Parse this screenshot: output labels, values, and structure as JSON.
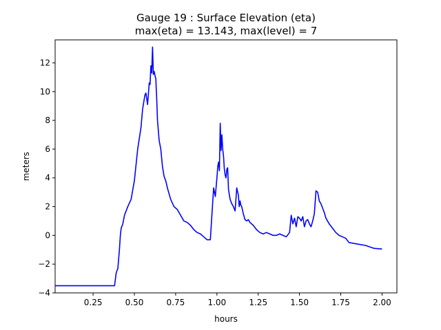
{
  "chart_data": {
    "type": "line",
    "title_line1": "Gauge 19 : Surface Elevation (eta)",
    "title_line2": "max(eta) =  13.143,    max(level) = 7",
    "xlabel": "hours",
    "ylabel": "meters",
    "xlim": [
      0.02,
      2.09
    ],
    "ylim": [
      -4.0,
      13.6
    ],
    "xticks": [
      0.25,
      0.5,
      0.75,
      1.0,
      1.25,
      1.5,
      1.75,
      2.0
    ],
    "xtick_labels": [
      "0.25",
      "0.50",
      "0.75",
      "1.00",
      "1.25",
      "1.50",
      "1.75",
      "2.00"
    ],
    "yticks": [
      -4,
      -2,
      0,
      2,
      4,
      6,
      8,
      10,
      12
    ],
    "ytick_labels": [
      "−4",
      "−2",
      "0",
      "2",
      "4",
      "6",
      "8",
      "10",
      "12"
    ],
    "grid": false,
    "line_color": "#0000ff",
    "series": [
      {
        "name": "eta",
        "x": [
          0.02,
          0.38,
          0.39,
          0.4,
          0.41,
          0.415,
          0.42,
          0.43,
          0.44,
          0.46,
          0.48,
          0.5,
          0.52,
          0.54,
          0.55,
          0.56,
          0.565,
          0.57,
          0.58,
          0.59,
          0.595,
          0.6,
          0.605,
          0.61,
          0.615,
          0.62,
          0.625,
          0.63,
          0.632,
          0.635,
          0.64,
          0.65,
          0.66,
          0.67,
          0.68,
          0.69,
          0.7,
          0.72,
          0.74,
          0.76,
          0.78,
          0.8,
          0.82,
          0.84,
          0.86,
          0.88,
          0.9,
          0.92,
          0.94,
          0.96,
          0.98,
          0.99,
          1.0,
          1.005,
          1.01,
          1.015,
          1.02,
          1.025,
          1.03,
          1.035,
          1.04,
          1.045,
          1.05,
          1.055,
          1.06,
          1.065,
          1.07,
          1.08,
          1.09,
          1.1,
          1.11,
          1.12,
          1.13,
          1.135,
          1.14,
          1.145,
          1.15,
          1.16,
          1.17,
          1.18,
          1.19,
          1.2,
          1.22,
          1.24,
          1.26,
          1.28,
          1.3,
          1.32,
          1.34,
          1.36,
          1.38,
          1.4,
          1.42,
          1.44,
          1.45,
          1.46,
          1.47,
          1.48,
          1.49,
          1.5,
          1.51,
          1.52,
          1.53,
          1.54,
          1.55,
          1.56,
          1.57,
          1.58,
          1.59,
          1.6,
          1.61,
          1.62,
          1.63,
          1.64,
          1.65,
          1.66,
          1.67,
          1.68,
          1.7,
          1.72,
          1.74,
          1.76,
          1.78,
          1.8,
          1.85,
          1.9,
          1.95,
          2.0
        ],
        "values": [
          -3.5,
          -3.5,
          -2.6,
          -2.3,
          -0.9,
          0.0,
          0.5,
          0.8,
          1.4,
          2.0,
          2.5,
          3.8,
          6.0,
          7.5,
          8.8,
          9.5,
          9.8,
          9.9,
          9.1,
          10.6,
          10.5,
          11.8,
          11.3,
          13.1,
          11.2,
          11.4,
          11.1,
          10.9,
          10.3,
          9.6,
          8.0,
          6.6,
          6.0,
          4.8,
          4.1,
          3.8,
          3.3,
          2.5,
          2.0,
          1.8,
          1.4,
          1.0,
          0.9,
          0.7,
          0.4,
          0.2,
          0.1,
          -0.1,
          -0.3,
          -0.3,
          3.3,
          2.7,
          4.0,
          4.8,
          5.1,
          4.5,
          7.8,
          5.9,
          7.0,
          6.0,
          5.5,
          4.6,
          4.2,
          4.0,
          4.6,
          4.7,
          3.2,
          2.5,
          2.2,
          2.0,
          1.7,
          3.3,
          2.8,
          2.0,
          2.4,
          2.1,
          2.0,
          1.5,
          1.1,
          1.0,
          1.1,
          0.9,
          0.7,
          0.4,
          0.2,
          0.1,
          0.2,
          0.1,
          0.0,
          0.0,
          0.1,
          0.0,
          -0.1,
          0.2,
          1.4,
          0.8,
          1.2,
          0.6,
          1.3,
          1.2,
          1.0,
          1.3,
          0.6,
          1.0,
          1.1,
          0.8,
          0.6,
          1.0,
          1.5,
          3.1,
          3.0,
          2.4,
          2.2,
          1.9,
          1.6,
          1.2,
          1.0,
          0.8,
          0.5,
          0.2,
          0.0,
          -0.1,
          -0.2,
          -0.5,
          -0.6,
          -0.7,
          -0.9,
          -0.95
        ]
      }
    ]
  }
}
